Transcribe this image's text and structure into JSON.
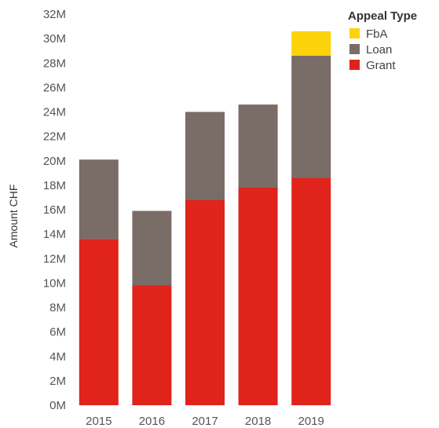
{
  "chart_data": {
    "type": "bar",
    "stacked": true,
    "categories": [
      "2015",
      "2016",
      "2017",
      "2018",
      "2019"
    ],
    "series": [
      {
        "name": "Grant",
        "color": "#e0231b",
        "values": [
          13.6,
          9.8,
          16.8,
          17.8,
          18.6
        ]
      },
      {
        "name": "Loan",
        "color": "#7a6c66",
        "values": [
          6.5,
          6.1,
          7.2,
          6.8,
          10.0
        ]
      },
      {
        "name": "FbA",
        "color": "#fcd20b",
        "values": [
          0,
          0,
          0,
          0,
          2.0
        ]
      }
    ],
    "ylabel": "Amount CHF",
    "xlabel": "",
    "ylim": [
      0,
      32
    ],
    "yticks": [
      0,
      2,
      4,
      6,
      8,
      10,
      12,
      14,
      16,
      18,
      20,
      22,
      24,
      26,
      28,
      30,
      32
    ],
    "ytick_labels": [
      "0M",
      "2M",
      "4M",
      "6M",
      "8M",
      "10M",
      "12M",
      "14M",
      "16M",
      "18M",
      "20M",
      "22M",
      "24M",
      "26M",
      "28M",
      "30M",
      "32M"
    ],
    "legend": {
      "title": "Appeal Type",
      "position": "top-right",
      "entries": [
        "FbA",
        "Loan",
        "Grant"
      ]
    },
    "grid": false
  }
}
